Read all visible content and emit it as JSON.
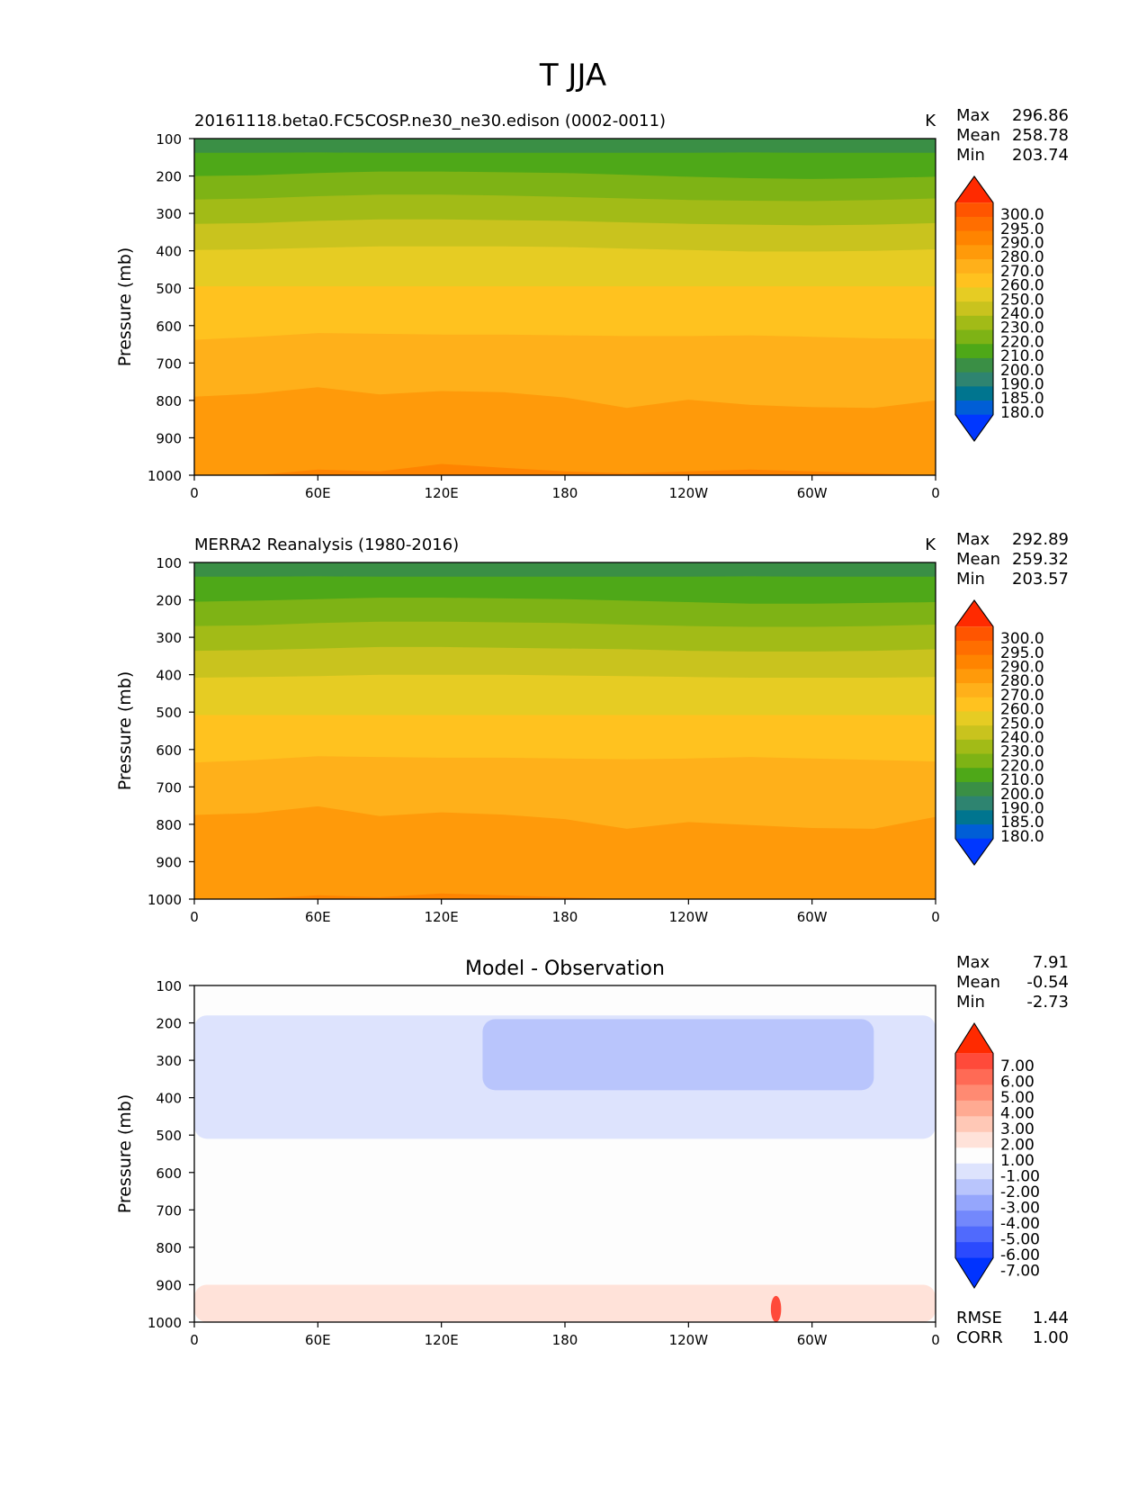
{
  "suptitle": "T JJA",
  "xticks": [
    "0",
    "60E",
    "120E",
    "180",
    "120W",
    "60W",
    "0"
  ],
  "yticks": [
    "100",
    "200",
    "300",
    "400",
    "500",
    "600",
    "700",
    "800",
    "900",
    "1000"
  ],
  "ylabel": "Pressure (mb)",
  "stat_labels": {
    "max": "Max",
    "mean": "Mean",
    "min": "Min",
    "rmse": "RMSE",
    "corr": "CORR"
  },
  "panels": [
    {
      "title_left": "20161118.beta0.FC5COSP.ne30_ne30.edison (0002-0011)",
      "title_center": "",
      "units": "K",
      "stats": {
        "max": "296.86",
        "mean": "258.78",
        "min": "203.74"
      }
    },
    {
      "title_left": "MERRA2 Reanalysis (1980-2016)",
      "title_center": "",
      "units": "K",
      "stats": {
        "max": "292.89",
        "mean": "259.32",
        "min": "203.57"
      }
    },
    {
      "title_left": "",
      "title_center": "Model - Observation",
      "units": "",
      "stats": {
        "max": "7.91",
        "mean": "-0.54",
        "min": "-2.73"
      },
      "metrics": {
        "rmse": "1.44",
        "corr": "1.00"
      }
    }
  ],
  "colorbars": {
    "temperature": {
      "labels": [
        "300.0",
        "295.0",
        "290.0",
        "280.0",
        "270.0",
        "260.0",
        "250.0",
        "240.0",
        "230.0",
        "220.0",
        "210.0",
        "200.0",
        "190.0",
        "185.0",
        "180.0"
      ],
      "colors": [
        "#ff2a00",
        "#ff5500",
        "#ff6e00",
        "#ff8400",
        "#ff9a0a",
        "#ffb01a",
        "#ffc21f",
        "#e6cc23",
        "#c9c31e",
        "#a2bb17",
        "#7eb315",
        "#4ea818",
        "#3a8f45",
        "#2e8470",
        "#00758f",
        "#005ed6",
        "#0037ff"
      ]
    },
    "difference": {
      "labels": [
        "7.00",
        "6.00",
        "5.00",
        "4.00",
        "3.00",
        "2.00",
        "1.00",
        "-1.00",
        "-2.00",
        "-3.00",
        "-4.00",
        "-5.00",
        "-6.00",
        "-7.00"
      ],
      "colors": [
        "#ff2a00",
        "#ff4a3a",
        "#ff6a55",
        "#ff8a72",
        "#ffaa92",
        "#ffc8b6",
        "#ffe2d9",
        "#fdfdfd",
        "#dde3fd",
        "#b9c5fc",
        "#95a6fc",
        "#7388fc",
        "#506afd",
        "#2b4afe",
        "#0033ff"
      ]
    }
  },
  "chart_data": [
    {
      "type": "heatmap",
      "title": "20161118.beta0.FC5COSP.ne30_ne30.edison (0002-0011)",
      "ylabel": "Pressure (mb)",
      "units": "K",
      "x": [
        0,
        60,
        120,
        180,
        240,
        300,
        360
      ],
      "xtick_labels": [
        "0",
        "60E",
        "120E",
        "180",
        "120W",
        "60W",
        "0"
      ],
      "xlim": [
        0,
        360
      ],
      "ylim": [
        1000,
        100
      ],
      "contour_levels": [
        180,
        185,
        190,
        200,
        210,
        220,
        230,
        240,
        250,
        260,
        270,
        280,
        290,
        295,
        300
      ],
      "level_colors": [
        "#0037ff",
        "#005ed6",
        "#00758f",
        "#2e8470",
        "#3a8f45",
        "#4ea818",
        "#7eb315",
        "#a2bb17",
        "#c9c31e",
        "#e6cc23",
        "#ffc21f",
        "#ffb01a",
        "#ff9a0a",
        "#ff8400",
        "#ff6e00",
        "#ff5500",
        "#ff2a00"
      ],
      "isotherms": [
        {
          "level": 210,
          "pressure": [
            138,
            138,
            137,
            138,
            138,
            138,
            138,
            138,
            138,
            137,
            138,
            138,
            138
          ]
        },
        {
          "level": 220,
          "pressure": [
            200,
            198,
            192,
            188,
            188,
            190,
            192,
            197,
            202,
            206,
            208,
            206,
            202
          ]
        },
        {
          "level": 230,
          "pressure": [
            263,
            260,
            254,
            250,
            250,
            252,
            256,
            260,
            264,
            266,
            267,
            264,
            260
          ]
        },
        {
          "level": 240,
          "pressure": [
            328,
            326,
            320,
            316,
            316,
            318,
            320,
            324,
            328,
            330,
            332,
            330,
            326
          ]
        },
        {
          "level": 250,
          "pressure": [
            398,
            396,
            392,
            388,
            388,
            388,
            390,
            394,
            398,
            402,
            402,
            400,
            396
          ]
        },
        {
          "level": 260,
          "pressure": [
            495,
            495,
            495,
            495,
            495,
            495,
            495,
            495,
            495,
            495,
            495,
            495,
            495
          ]
        },
        {
          "level": 270,
          "pressure": [
            638,
            630,
            620,
            622,
            624,
            624,
            626,
            628,
            628,
            626,
            630,
            634,
            636
          ]
        },
        {
          "level": 280,
          "pressure": [
            790,
            782,
            765,
            784,
            775,
            778,
            792,
            820,
            798,
            812,
            818,
            820,
            800
          ]
        },
        {
          "level": 290,
          "pressure": [
            1000,
            1000,
            985,
            990,
            970,
            980,
            990,
            995,
            990,
            985,
            990,
            995,
            1000
          ]
        }
      ]
    },
    {
      "type": "heatmap",
      "title": "MERRA2 Reanalysis (1980-2016)",
      "ylabel": "Pressure (mb)",
      "units": "K",
      "x": [
        0,
        60,
        120,
        180,
        240,
        300,
        360
      ],
      "xtick_labels": [
        "0",
        "60E",
        "120E",
        "180",
        "120W",
        "60W",
        "0"
      ],
      "xlim": [
        0,
        360
      ],
      "ylim": [
        1000,
        100
      ],
      "contour_levels": [
        180,
        185,
        190,
        200,
        210,
        220,
        230,
        240,
        250,
        260,
        270,
        280,
        290,
        295,
        300
      ],
      "level_colors": [
        "#0037ff",
        "#005ed6",
        "#00758f",
        "#2e8470",
        "#3a8f45",
        "#4ea818",
        "#7eb315",
        "#a2bb17",
        "#c9c31e",
        "#e6cc23",
        "#ffc21f",
        "#ffb01a",
        "#ff9a0a",
        "#ff8400",
        "#ff6e00",
        "#ff5500",
        "#ff2a00"
      ],
      "isotherms": [
        {
          "level": 210,
          "pressure": [
            138,
            138,
            137,
            138,
            138,
            138,
            138,
            138,
            138,
            137,
            138,
            138,
            138
          ]
        },
        {
          "level": 220,
          "pressure": [
            205,
            202,
            198,
            194,
            194,
            196,
            198,
            202,
            206,
            210,
            210,
            208,
            206
          ]
        },
        {
          "level": 230,
          "pressure": [
            270,
            268,
            262,
            258,
            258,
            260,
            262,
            266,
            270,
            272,
            272,
            270,
            266
          ]
        },
        {
          "level": 240,
          "pressure": [
            336,
            334,
            330,
            326,
            326,
            328,
            330,
            332,
            336,
            338,
            338,
            336,
            332
          ]
        },
        {
          "level": 250,
          "pressure": [
            408,
            406,
            404,
            400,
            400,
            400,
            402,
            404,
            406,
            408,
            408,
            408,
            406
          ]
        },
        {
          "level": 260,
          "pressure": [
            508,
            508,
            508,
            508,
            508,
            508,
            508,
            508,
            508,
            508,
            508,
            508,
            508
          ]
        },
        {
          "level": 270,
          "pressure": [
            635,
            628,
            618,
            620,
            622,
            622,
            624,
            626,
            624,
            620,
            624,
            628,
            632
          ]
        },
        {
          "level": 280,
          "pressure": [
            775,
            770,
            752,
            778,
            768,
            774,
            786,
            812,
            794,
            802,
            810,
            812,
            780
          ]
        },
        {
          "level": 290,
          "pressure": [
            1000,
            1000,
            990,
            995,
            985,
            990,
            995,
            1000,
            1000,
            1000,
            1000,
            1000,
            1000
          ]
        }
      ]
    },
    {
      "type": "heatmap",
      "title": "Model - Observation",
      "ylabel": "Pressure (mb)",
      "x": [
        0,
        60,
        120,
        180,
        240,
        300,
        360
      ],
      "xtick_labels": [
        "0",
        "60E",
        "120E",
        "180",
        "120W",
        "60W",
        "0"
      ],
      "xlim": [
        0,
        360
      ],
      "ylim": [
        1000,
        100
      ],
      "contour_levels": [
        -7,
        -6,
        -5,
        -4,
        -3,
        -2,
        -1,
        1,
        2,
        3,
        4,
        5,
        6,
        7
      ],
      "level_colors": [
        "#0033ff",
        "#2b4afe",
        "#506afd",
        "#7388fc",
        "#95a6fc",
        "#b9c5fc",
        "#dde3fd",
        "#fdfdfd",
        "#ffe2d9",
        "#ffc8b6",
        "#ffaa92",
        "#ff8a72",
        "#ff6a55",
        "#ff4a3a",
        "#ff2a00"
      ],
      "regions": [
        {
          "range": "-1 to -2",
          "description": "upper troposphere band",
          "lon_range": [
            0,
            360
          ],
          "pressure_range": [
            180,
            510
          ]
        },
        {
          "range": "-2 to -3",
          "description": "cool patch",
          "lon_range": [
            140,
            330
          ],
          "pressure_range": [
            190,
            380
          ]
        },
        {
          "range": "1 to 2",
          "description": "near-surface band",
          "lon_range": [
            0,
            360
          ],
          "pressure_range": [
            900,
            1000
          ]
        },
        {
          "range": "6 to 7",
          "description": "surface maximum",
          "lon_range": [
            280,
            285
          ],
          "pressure_range": [
            930,
            1000
          ]
        }
      ],
      "stats": {
        "max": 7.91,
        "mean": -0.54,
        "min": -2.73,
        "rmse": 1.44,
        "corr": 1.0
      }
    }
  ]
}
